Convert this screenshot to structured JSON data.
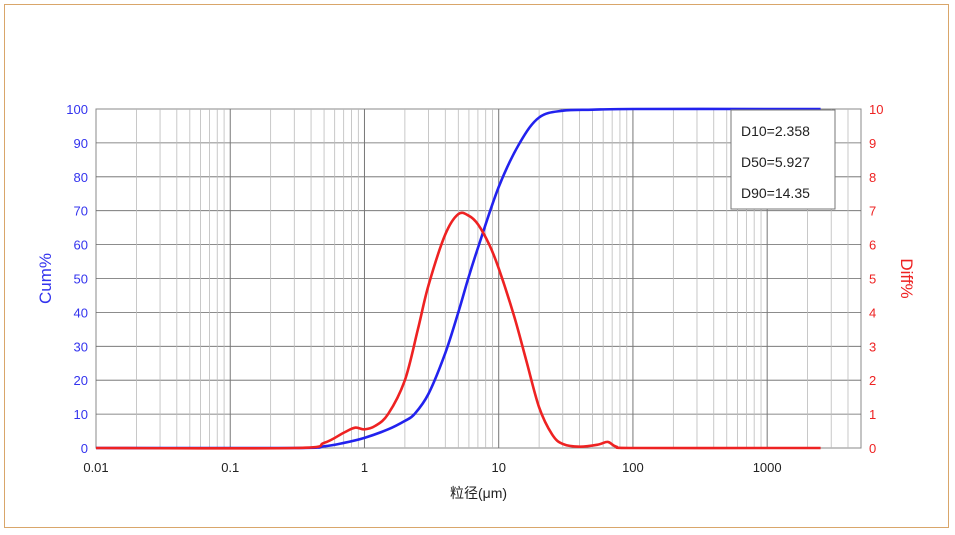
{
  "chart_data": {
    "type": "line",
    "xscale": "log",
    "xlim": [
      0.01,
      5000
    ],
    "xlabel": "粒径(μm)",
    "x_ticks": [
      "0.01",
      "0.1",
      "1",
      "10",
      "100",
      "1000"
    ],
    "y_left": {
      "label": "Cum%",
      "ylim": [
        0,
        100
      ],
      "ticks": [
        "0",
        "10",
        "20",
        "30",
        "40",
        "50",
        "60",
        "70",
        "80",
        "90",
        "100"
      ],
      "color": "#2222ee"
    },
    "y_right": {
      "label": "Diff%",
      "ylim": [
        0,
        10
      ],
      "ticks": [
        "0",
        "1",
        "2",
        "3",
        "4",
        "5",
        "6",
        "7",
        "8",
        "9",
        "10"
      ],
      "color": "#ee2222"
    },
    "grid": true,
    "series": [
      {
        "axis": "left",
        "color": "#2222ee",
        "x": [
          0.01,
          0.3,
          0.5,
          0.7,
          1.0,
          1.5,
          2.0,
          2.358,
          3.0,
          4.0,
          5.0,
          5.927,
          7.0,
          10.0,
          14.35,
          20.0,
          30.0,
          50.0,
          100.0,
          1000.0,
          2500.0
        ],
        "y": [
          0,
          0,
          0.5,
          1.5,
          3.0,
          5.5,
          8.0,
          10.0,
          16.0,
          28.0,
          40.0,
          50.0,
          59.0,
          77.0,
          90.0,
          97.5,
          99.5,
          99.8,
          100,
          100,
          100
        ]
      },
      {
        "axis": "right",
        "color": "#ee2222",
        "x": [
          0.01,
          0.3,
          0.5,
          0.7,
          0.85,
          1.0,
          1.2,
          1.5,
          2.0,
          2.5,
          3.0,
          4.0,
          5.0,
          6.0,
          7.0,
          8.5,
          10.0,
          13.0,
          16.0,
          20.0,
          25.0,
          30.0,
          40.0,
          55.0,
          65.0,
          75.0,
          100.0,
          1000.0,
          2500.0
        ],
        "y": [
          0,
          0,
          0.15,
          0.45,
          0.6,
          0.55,
          0.65,
          1.0,
          2.0,
          3.5,
          4.8,
          6.3,
          6.9,
          6.85,
          6.6,
          6.0,
          5.3,
          3.9,
          2.6,
          1.2,
          0.4,
          0.12,
          0.04,
          0.1,
          0.18,
          0.04,
          0,
          0,
          0
        ]
      }
    ],
    "annotations": [
      "D10=2.358",
      "D50=5.927",
      "D90=14.35"
    ]
  }
}
